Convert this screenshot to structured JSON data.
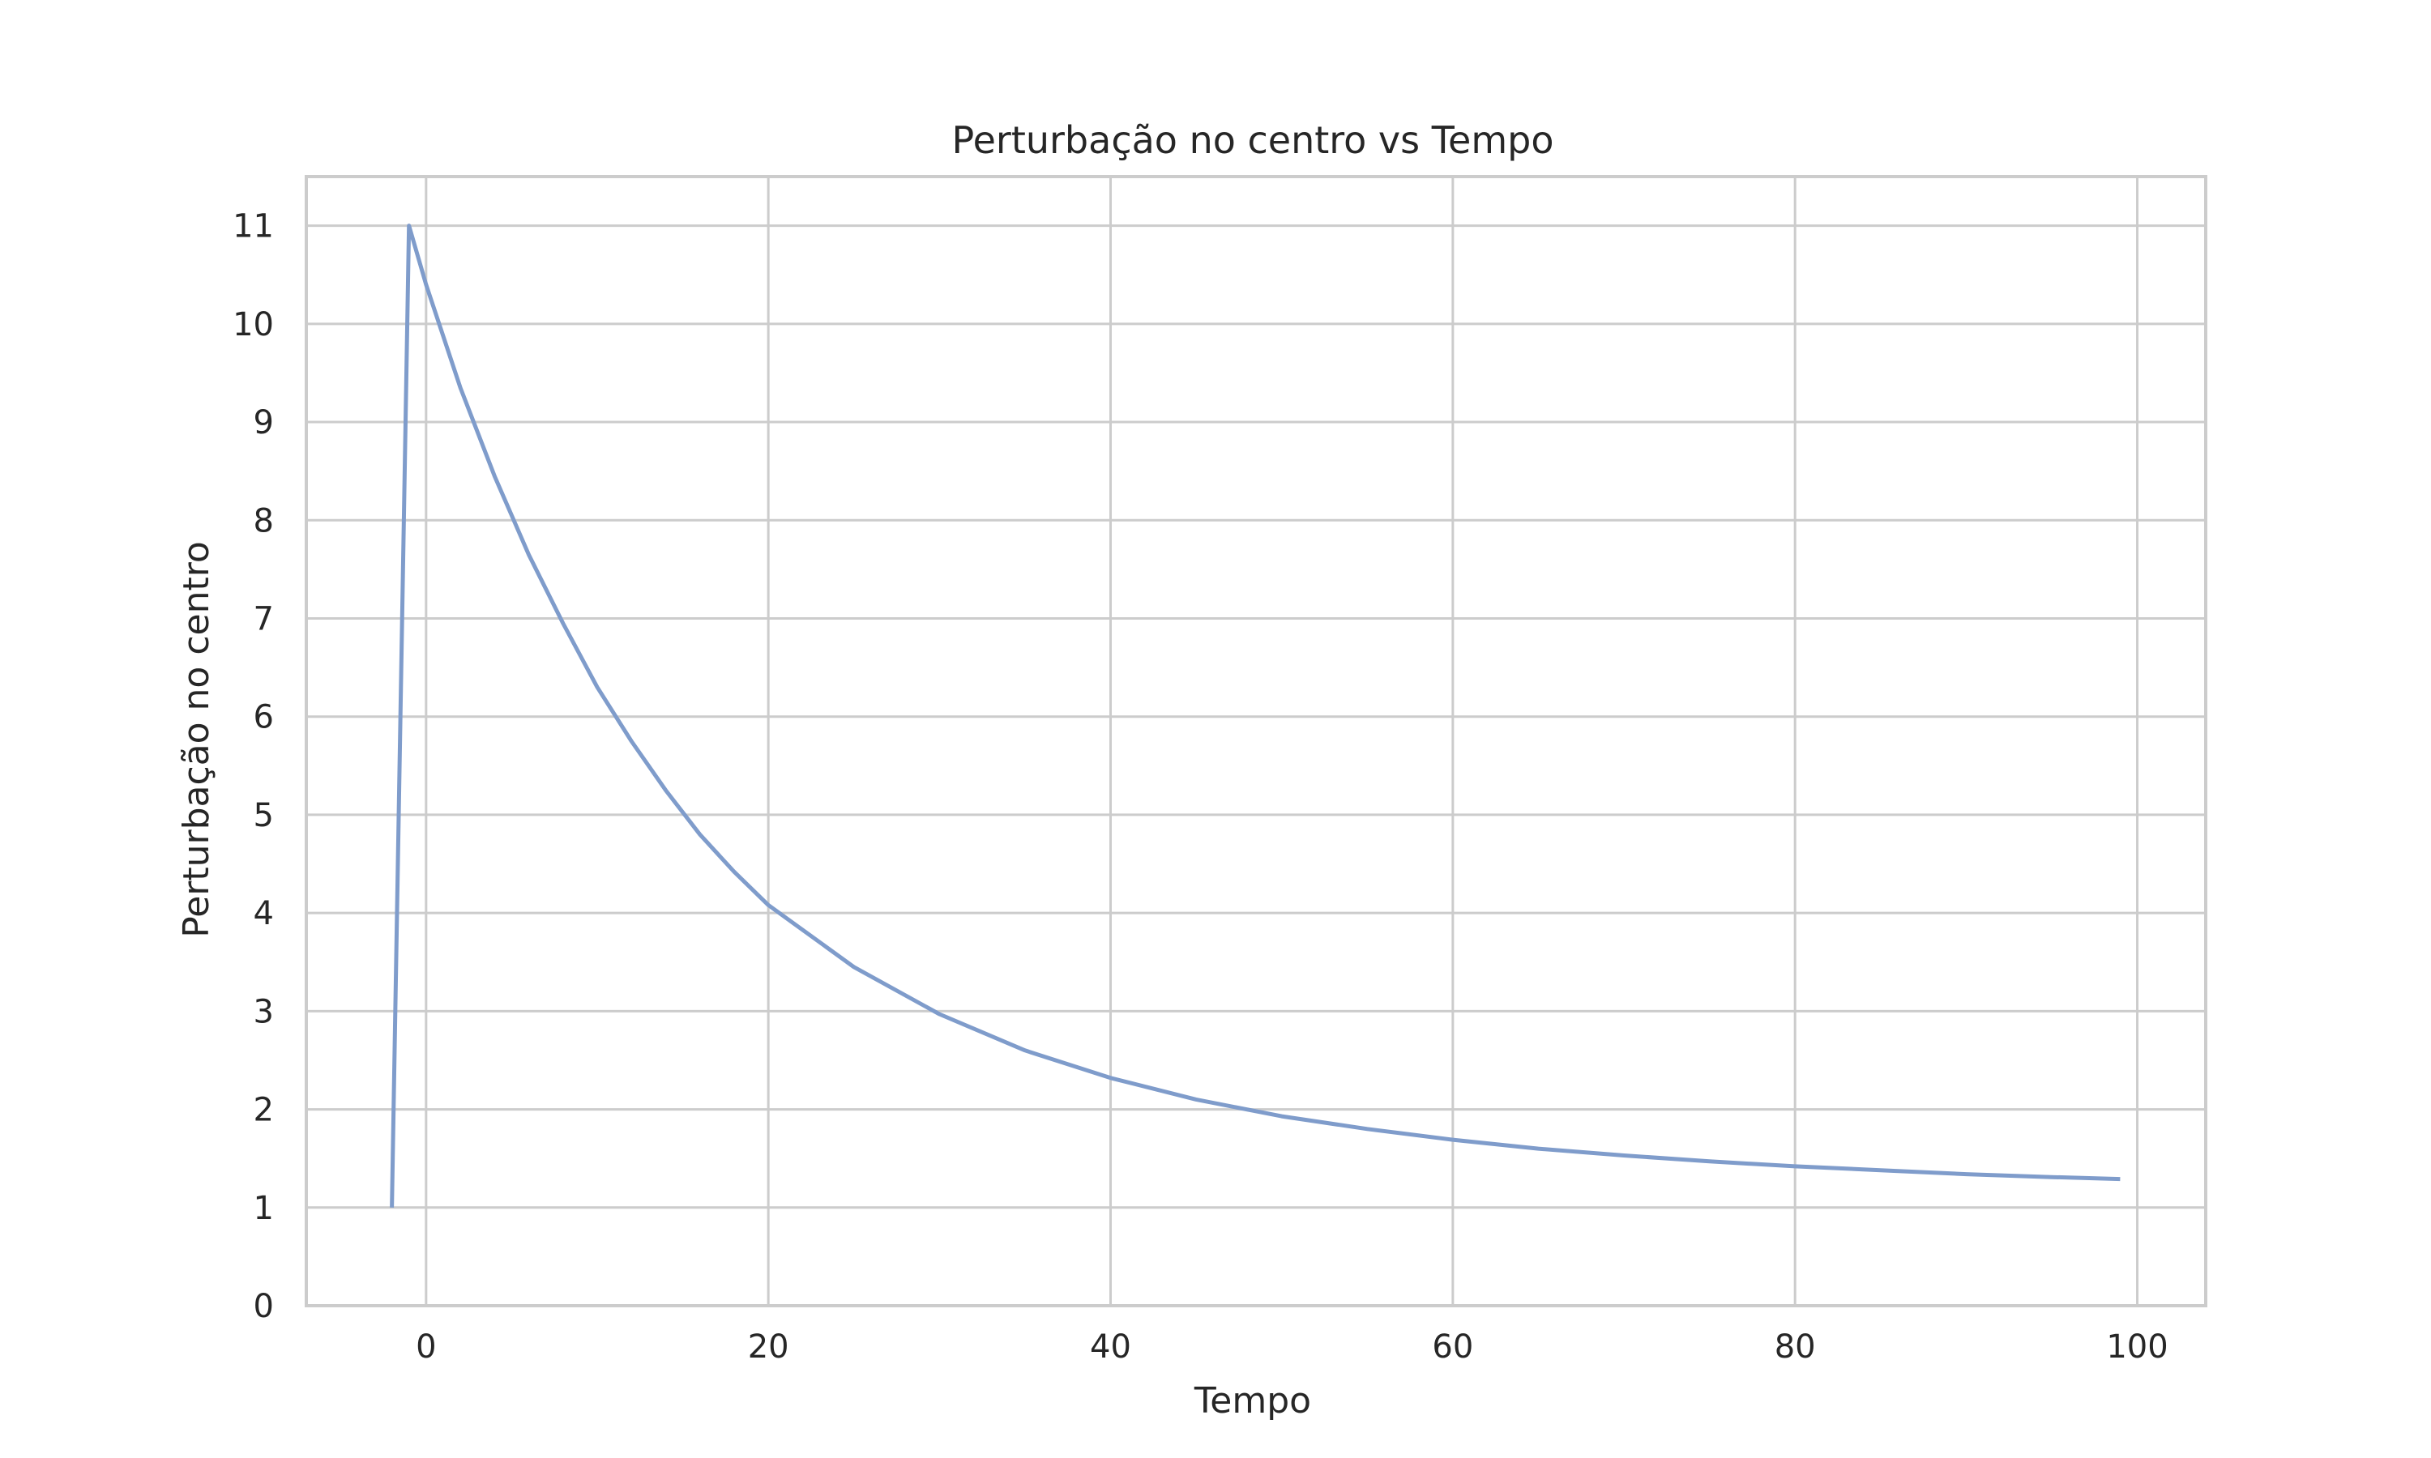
{
  "chart_data": {
    "type": "line",
    "title": "Perturbação no centro vs Tempo",
    "xlabel": "Tempo",
    "ylabel": "Perturbação no centro",
    "xlim": [
      -7,
      104
    ],
    "ylim": [
      0,
      11.5
    ],
    "grid": true,
    "x_ticks": [
      "0",
      "20",
      "40",
      "60",
      "80",
      "100"
    ],
    "x_tick_values": [
      0,
      20,
      40,
      60,
      80,
      100
    ],
    "y_ticks": [
      "0",
      "1",
      "2",
      "3",
      "4",
      "5",
      "6",
      "7",
      "8",
      "9",
      "10",
      "11"
    ],
    "y_tick_values": [
      0,
      1,
      2,
      3,
      4,
      5,
      6,
      7,
      8,
      9,
      10,
      11
    ],
    "series": [
      {
        "color": "#7f9ccb",
        "x": [
          -2,
          -1,
          0,
          2,
          4,
          6,
          8,
          10,
          12,
          14,
          16,
          18,
          20,
          25,
          30,
          35,
          40,
          45,
          50,
          55,
          60,
          65,
          70,
          75,
          80,
          85,
          90,
          95,
          99
        ],
        "y": [
          1.0,
          11.0,
          10.4,
          9.35,
          8.45,
          7.65,
          6.95,
          6.3,
          5.75,
          5.25,
          4.8,
          4.42,
          4.08,
          3.45,
          2.97,
          2.6,
          2.32,
          2.1,
          1.93,
          1.8,
          1.69,
          1.6,
          1.53,
          1.47,
          1.42,
          1.38,
          1.34,
          1.31,
          1.29
        ]
      }
    ]
  }
}
